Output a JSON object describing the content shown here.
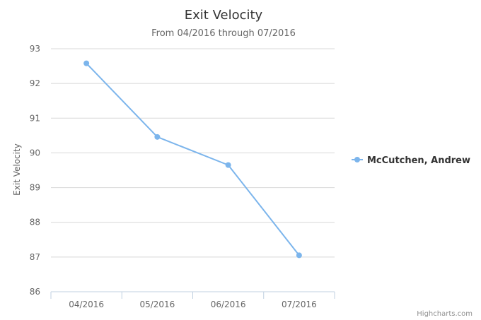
{
  "chart_data": {
    "type": "line",
    "title": "Exit Velocity",
    "subtitle": "From 04/2016 through 07/2016",
    "xlabel": "",
    "ylabel": "Exit Velocity",
    "categories": [
      "04/2016",
      "05/2016",
      "06/2016",
      "07/2016"
    ],
    "series": [
      {
        "name": "McCutchen, Andrew",
        "values": [
          92.58,
          90.46,
          89.65,
          87.05
        ],
        "color": "#7cb5ec"
      }
    ],
    "ylim": [
      86,
      93
    ],
    "yticks": [
      86,
      87,
      88,
      89,
      90,
      91,
      92,
      93
    ],
    "grid": true,
    "legend": "right"
  },
  "credits": "Highcharts.com"
}
